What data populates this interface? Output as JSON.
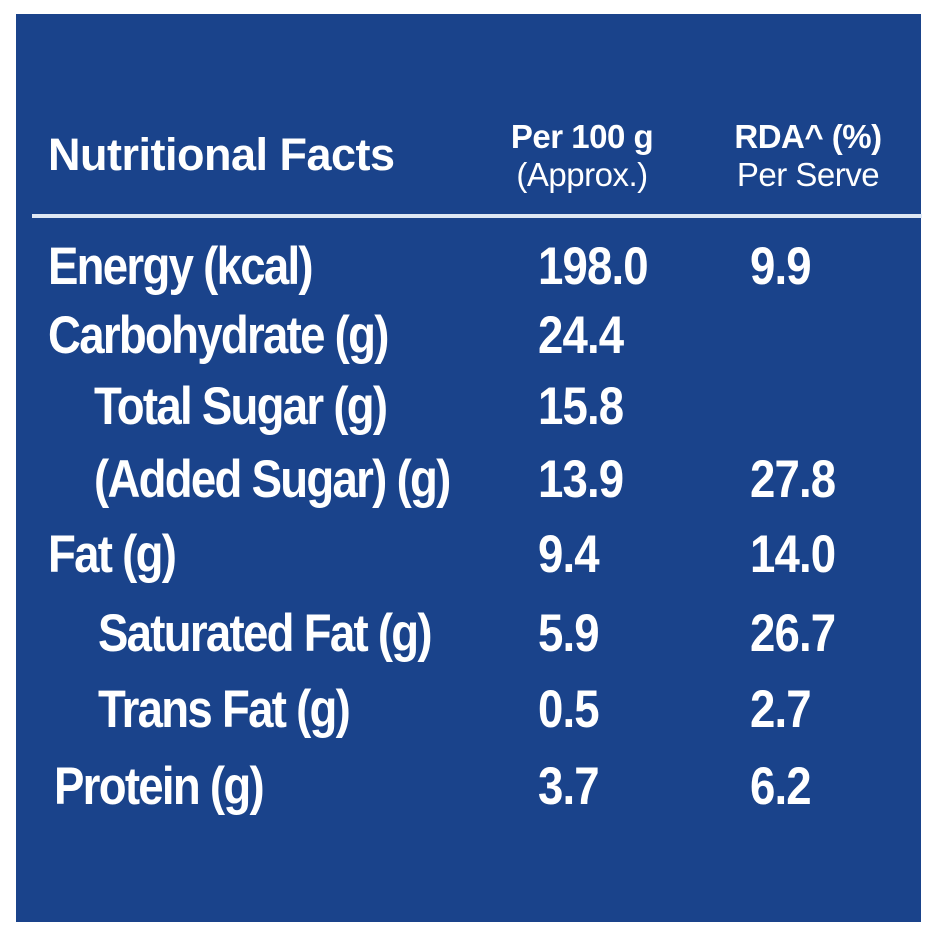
{
  "panel": {
    "title": "Nutritional Facts",
    "columns": [
      {
        "line1": "Per 100 g",
        "line2": "(Approx.)"
      },
      {
        "line1": "RDA^ (%)",
        "line2": "Per Serve"
      }
    ],
    "rows": [
      {
        "label": "Energy (kcal)",
        "per100g": "198.0",
        "rda": "9.9"
      },
      {
        "label": "Carbohydrate (g)",
        "per100g": "24.4",
        "rda": ""
      },
      {
        "label": "Total Sugar (g)",
        "per100g": "15.8",
        "rda": ""
      },
      {
        "label": "(Added Sugar) (g)",
        "per100g": "13.9",
        "rda": "27.8"
      },
      {
        "label": "Fat (g)",
        "per100g": "9.4",
        "rda": "14.0"
      },
      {
        "label": "Saturated Fat (g)",
        "per100g": "5.9",
        "rda": "26.7"
      },
      {
        "label": "Trans Fat (g)",
        "per100g": "0.5",
        "rda": "2.7"
      },
      {
        "label": "Protein (g)",
        "per100g": "3.7",
        "rda": "6.2"
      }
    ]
  },
  "colors": {
    "background": "#1a438b",
    "text": "#ffffff"
  }
}
